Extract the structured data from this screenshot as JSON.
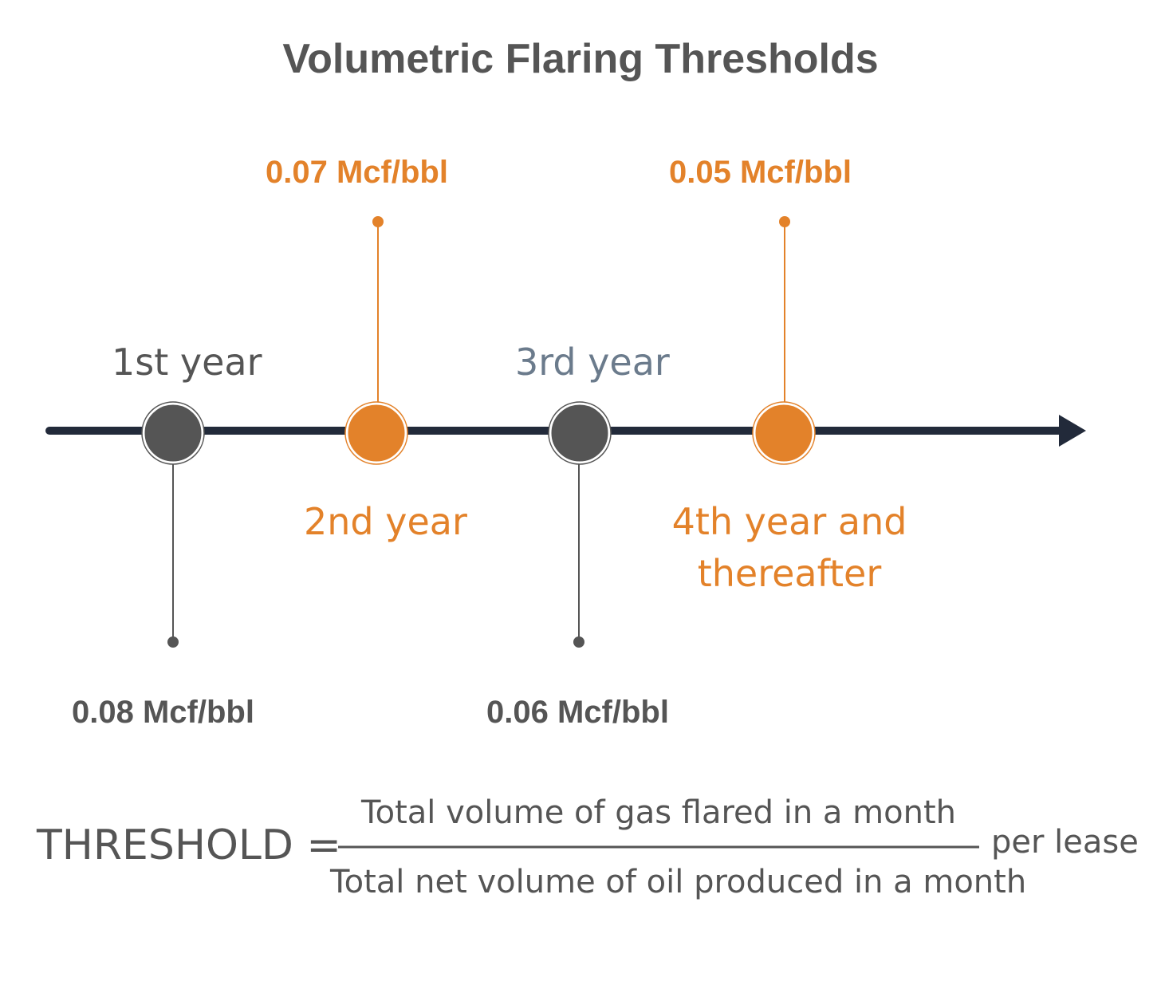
{
  "title": "Volumetric Flaring Thresholds",
  "milestones": [
    {
      "year_label": "1st year",
      "threshold": "0.08 Mcf/bbl"
    },
    {
      "year_label": "2nd year",
      "threshold": "0.07 Mcf/bbl"
    },
    {
      "year_label": "3rd year",
      "threshold": "0.06 Mcf/bbl"
    },
    {
      "year_label_line1": "4th year and",
      "year_label_line2": "thereafter",
      "threshold": "0.05 Mcf/bbl"
    }
  ],
  "formula": {
    "lhs": "THRESHOLD =",
    "numerator": "Total volume of gas flared in a month",
    "denominator": "Total net volume of oil produced in a month",
    "suffix": "per lease"
  },
  "colors": {
    "orange": "#e3822a",
    "dark_gray": "#555555",
    "axis_navy": "#222a3a",
    "slate": "#6b7b8c"
  }
}
